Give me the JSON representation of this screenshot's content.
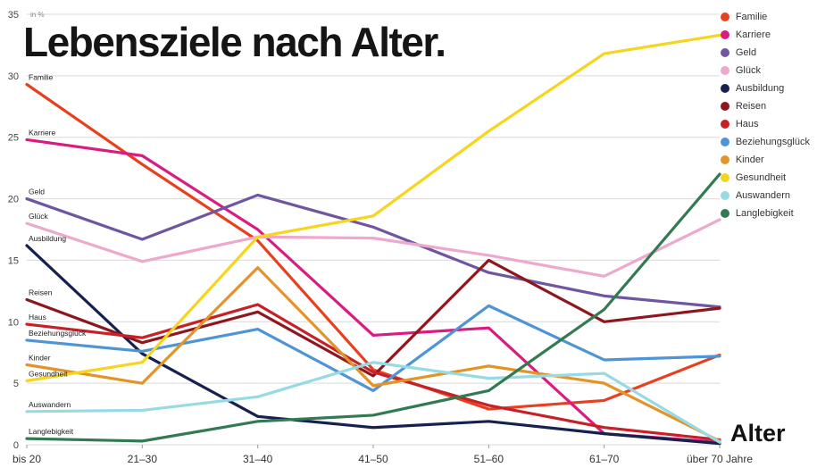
{
  "chart_data": {
    "type": "line",
    "title": "Lebensziele nach Alter.",
    "xlabel": "Alter",
    "ylabel": "in %",
    "ylim": [
      0,
      35
    ],
    "ytick_step": 5,
    "grid": true,
    "legend_position": "top-right",
    "categories": [
      "bis 20",
      "21–30",
      "31–40",
      "41–50",
      "51–60",
      "61–70",
      "über 70 Jahre"
    ],
    "series": [
      {
        "id": "familie",
        "name": "Familie",
        "color": "#e8401f",
        "values": [
          29.3,
          22.8,
          16.6,
          6.1,
          2.9,
          3.6,
          7.3
        ]
      },
      {
        "id": "karriere",
        "name": "Karriere",
        "color": "#d91c81",
        "values": [
          24.8,
          23.5,
          17.5,
          8.9,
          9.5,
          0.9,
          0.2
        ]
      },
      {
        "id": "geld",
        "name": "Geld",
        "color": "#7055a0",
        "values": [
          20.0,
          16.7,
          20.3,
          17.7,
          14.0,
          12.1,
          11.2
        ]
      },
      {
        "id": "glueck",
        "name": "Glück",
        "color": "#efa8cd",
        "values": [
          18.0,
          14.9,
          16.9,
          16.8,
          15.4,
          13.7,
          18.3
        ]
      },
      {
        "id": "ausbildung",
        "name": "Ausbildung",
        "color": "#16214f",
        "values": [
          16.2,
          7.4,
          2.3,
          1.4,
          1.9,
          0.9,
          0.1
        ]
      },
      {
        "id": "reisen",
        "name": "Reisen",
        "color": "#8e161d",
        "values": [
          11.8,
          8.3,
          10.8,
          5.6,
          15.0,
          10.0,
          11.1
        ]
      },
      {
        "id": "haus",
        "name": "Haus",
        "color": "#c62127",
        "values": [
          9.8,
          8.7,
          11.4,
          5.9,
          3.2,
          1.4,
          0.4
        ]
      },
      {
        "id": "beziehungsglueck",
        "name": "Beziehungsglück",
        "color": "#4f94d4",
        "values": [
          8.5,
          7.6,
          9.4,
          4.4,
          11.3,
          6.9,
          7.2
        ]
      },
      {
        "id": "kinder",
        "name": "Kinder",
        "color": "#e39428",
        "values": [
          6.5,
          5.0,
          14.4,
          4.8,
          6.4,
          5.0,
          0.3
        ]
      },
      {
        "id": "gesundheit",
        "name": "Gesundheit",
        "color": "#f5d51d",
        "values": [
          5.2,
          6.7,
          16.9,
          18.6,
          25.5,
          31.8,
          33.3
        ]
      },
      {
        "id": "auswandern",
        "name": "Auswandern",
        "color": "#96dbe3",
        "values": [
          2.7,
          2.8,
          3.9,
          6.7,
          5.4,
          5.8,
          0.2
        ]
      },
      {
        "id": "langlebigkeit",
        "name": "Langlebigkeit",
        "color": "#337a52",
        "values": [
          0.5,
          0.3,
          1.9,
          2.4,
          4.4,
          11.0,
          22.0
        ]
      }
    ]
  }
}
